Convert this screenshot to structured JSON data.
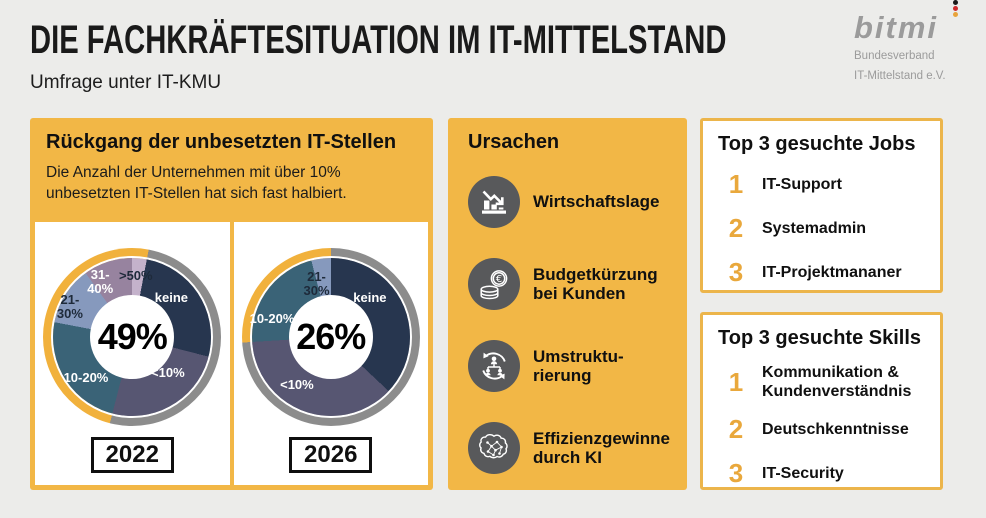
{
  "header": {
    "title": "DIE FACHKRÄFTESITUATION IM IT-MITTELSTAND",
    "subtitle": "Umfrage unter IT-KMU",
    "logo": {
      "name": "bitmi",
      "line1": "Bundesverband",
      "line2": "IT-Mittelstand e.V."
    }
  },
  "decline": {
    "title": "Rückgang der unbesetzten IT-Stellen",
    "description": "Die Anzahl der Unternehmen mit über 10% unbesetzten IT-Stellen hat sich fast halbiert."
  },
  "causes": {
    "title": "Ursachen",
    "items": [
      {
        "icon": "declining-chart-icon",
        "label": "Wirtschaftslage"
      },
      {
        "icon": "euro-coins-icon",
        "label": "Budgetkürzung\nbei Kunden"
      },
      {
        "icon": "restructuring-icon",
        "label": "Umstruktu-\nrierung"
      },
      {
        "icon": "ai-brain-icon",
        "label": "Effizienzgewinne\ndurch KI"
      }
    ]
  },
  "top_jobs": {
    "title": "Top 3 gesuchte Jobs",
    "items": [
      {
        "rank": "1",
        "label": "IT-Support"
      },
      {
        "rank": "2",
        "label": "Systemadmin"
      },
      {
        "rank": "3",
        "label": "IT-Projektmananer"
      }
    ]
  },
  "top_skills": {
    "title": "Top 3 gesuchte Skills",
    "items": [
      {
        "rank": "1",
        "label": "Kommunikation &\nKundenverständnis"
      },
      {
        "rank": "2",
        "label": "Deutschkenntnisse"
      },
      {
        "rank": "3",
        "label": "IT-Security"
      }
    ]
  },
  "colors": {
    "background": "#ECECEA",
    "panel_yellow": "#F2B746",
    "panel_border": "#ECB54B",
    "icon_circle": "#58595B",
    "rank_number": "#E9A83C",
    "logo_flag": [
      "#1A1A1A",
      "#CE2A2D",
      "#E8A33B"
    ]
  },
  "chart_data": [
    {
      "type": "donut",
      "year": "2022",
      "center_label": "49%",
      "highlighted_share_pct": 49,
      "ring": {
        "highlight_color": "#F1B13C",
        "rest_color": "#8C8C8C"
      },
      "segments": [
        {
          "label": ">50%",
          "value": 3,
          "color": "#C4B2CB",
          "text_color": "dark",
          "highlight": true,
          "pos": [
            52,
            16
          ]
        },
        {
          "label": "keine",
          "value": 26,
          "color": "#27364F",
          "text_color": "light",
          "highlight": false,
          "pos": [
            72,
            28
          ]
        },
        {
          "label": "<10%",
          "value": 25,
          "color": "#575672",
          "text_color": "light",
          "highlight": false,
          "pos": [
            70,
            70
          ]
        },
        {
          "label": "10-20%",
          "value": 24,
          "color": "#3A6377",
          "text_color": "light",
          "highlight": true,
          "pos": [
            24,
            73
          ]
        },
        {
          "label": "21-\n30%",
          "value": 12,
          "color": "#8699BD",
          "text_color": "dark",
          "highlight": true,
          "pos": [
            15,
            33
          ]
        },
        {
          "label": "31-\n40%",
          "value": 10,
          "color": "#97839F",
          "text_color": "light",
          "highlight": true,
          "pos": [
            32,
            19
          ]
        }
      ]
    },
    {
      "type": "donut",
      "year": "2026",
      "center_label": "26%",
      "highlighted_share_pct": 26,
      "ring": {
        "highlight_color": "#F1B13C",
        "rest_color": "#8C8C8C"
      },
      "segments": [
        {
          "label": "keine",
          "value": 37,
          "color": "#27364F",
          "text_color": "light",
          "highlight": false,
          "pos": [
            72,
            28
          ]
        },
        {
          "label": "<10%",
          "value": 37,
          "color": "#575672",
          "text_color": "light",
          "highlight": false,
          "pos": [
            31,
            77
          ]
        },
        {
          "label": "10-20%",
          "value": 22,
          "color": "#3A6377",
          "text_color": "light",
          "highlight": true,
          "pos": [
            17,
            40
          ]
        },
        {
          "label": "21-\n30%",
          "value": 4,
          "color": "#8699BD",
          "text_color": "dark",
          "highlight": true,
          "pos": [
            42,
            20
          ]
        }
      ]
    }
  ]
}
